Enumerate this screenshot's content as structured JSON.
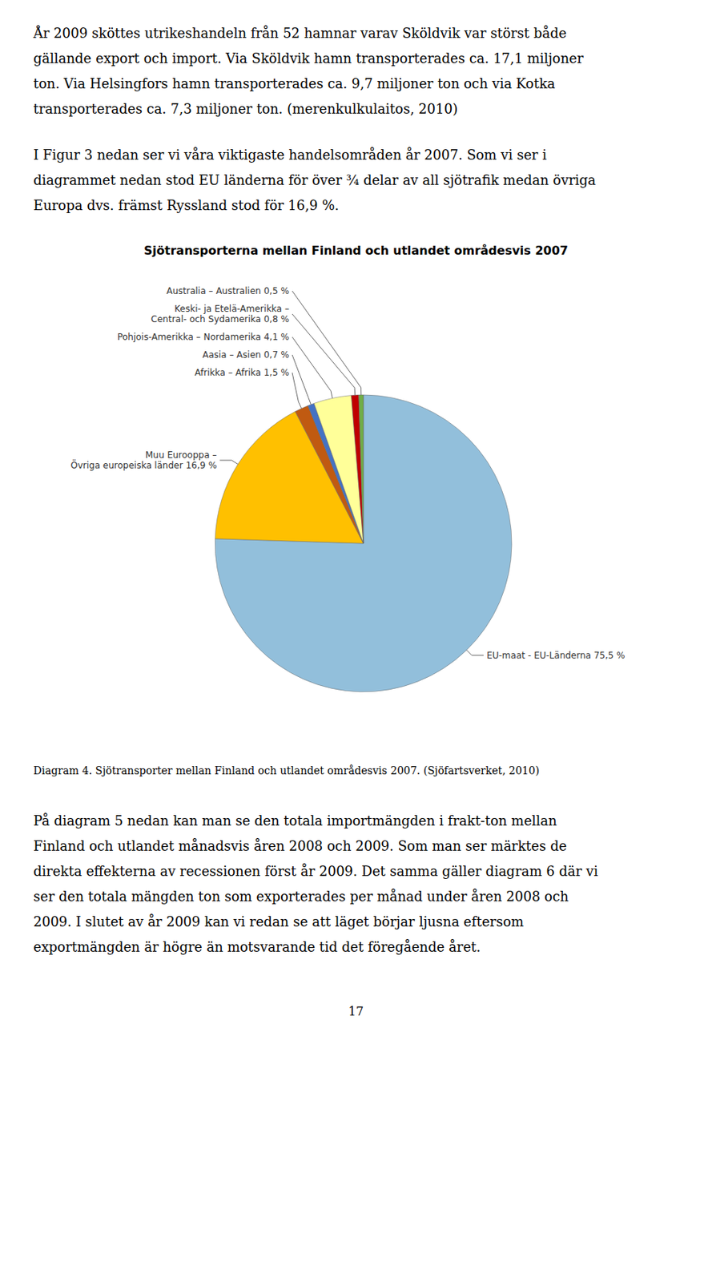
{
  "chart_data": {
    "type": "pie",
    "title": "Sjötransporterna mellan Finland och utlandet områdesvis 2007",
    "categories": [
      "EU-maat - EU-Länderna 75,5 %",
      "Muu Eurooppa –\nÖvriga europeiska länder 16,9 %",
      "Afrikka – Afrika 1,5 %",
      "Aasia – Asien 0,7 %",
      "Pohjois-Amerikka – Nordamerika 4,1 %",
      "Keski- ja Etelä-Amerikka –\nCentral- och Sydamerika 0,8 %",
      "Australia – Australien 0,5 %"
    ],
    "values": [
      75.5,
      16.9,
      1.5,
      0.7,
      4.1,
      0.8,
      0.5
    ],
    "colors": [
      "#92BFDB",
      "#FFC000",
      "#C05A11",
      "#4472C4",
      "#FFFF99",
      "#C00000",
      "#70AD47"
    ],
    "data_labels": true,
    "legend": false,
    "annotations": [
      "År 2009 sköttes utrikeshandeln från 52 hamnar varav Sköldvik var störst både\ngällande export och import. Via Sköldvik hamn transporterades ca. 17,1 miljoner\nton. Via Helsingfors hamn transporterades ca. 9,7 miljoner ton och via Kotka\ntransporterades ca. 7,3 miljoner ton. (merenkulkulaitos, 2010)",
      "I Figur 3 nedan ser vi våra viktigaste handelsområden år 2007. Som vi ser i\ndiagrammet nedan stod EU länderna för över ¾ delar av all sjötrafik medan övriga\nEuropa dvs. främst Ryssland stod för 16,9 %.",
      "Diagram 4. Sjötransporter mellan Finland och utlandet områdesvis 2007. (Sjöfartsverket, 2010)",
      "På diagram 5 nedan kan man se den totala importmängden i frakt-ton mellan\nFinland och utlandet månadsvis åren 2008 och 2009. Som man ser märktes de\ndirekta effekterna av recessionen först år 2009. Det samma gäller diagram 6 där vi\nser den totala mängden ton som exporterades per månad under åren 2008 och\n2009. I slutet av år 2009 kan vi redan se att läget börjar ljusna eftersom\nexportmängden är högre än motsvarande tid det föregående året.",
      "17"
    ]
  }
}
